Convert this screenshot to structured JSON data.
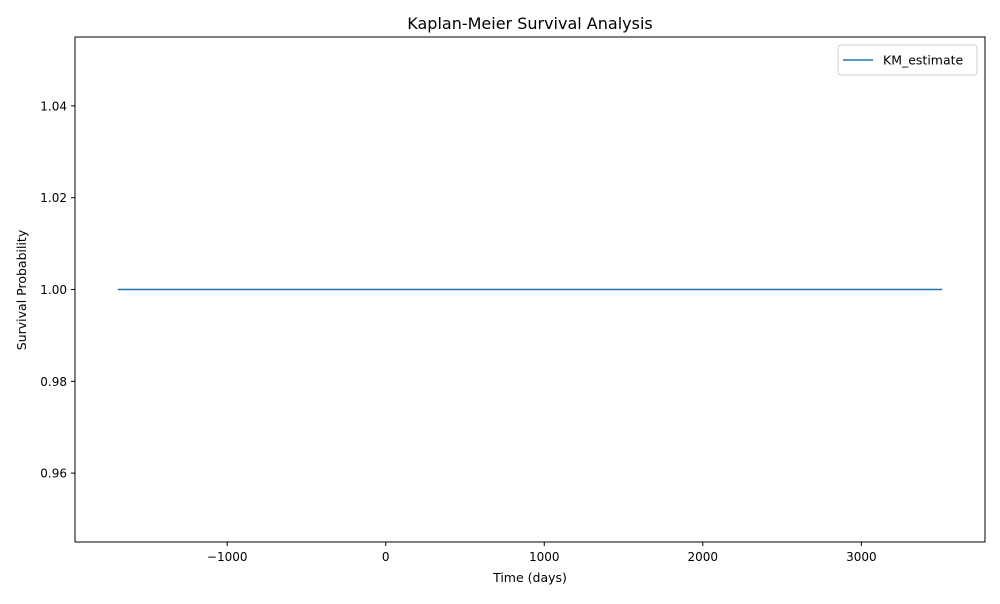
{
  "chart_data": {
    "type": "line",
    "title": "Kaplan-Meier Survival Analysis",
    "xlabel": "Time (days)",
    "ylabel": "Survival Probability",
    "xlim": [
      -1960,
      3780
    ],
    "ylim": [
      0.945,
      1.055
    ],
    "xticks": [
      -1000,
      0,
      1000,
      2000,
      3000
    ],
    "xtick_labels": [
      "−1000",
      "0",
      "1000",
      "2000",
      "3000"
    ],
    "yticks": [
      0.96,
      0.98,
      1.0,
      1.02,
      1.04
    ],
    "ytick_labels": [
      "0.96",
      "0.98",
      "1.00",
      "1.02",
      "1.04"
    ],
    "grid": false,
    "legend_position": "upper-right",
    "series": [
      {
        "name": "KM_estimate",
        "color": "#1f77b4",
        "x": [
          -1690,
          3510
        ],
        "y": [
          1.0,
          1.0
        ]
      }
    ]
  }
}
